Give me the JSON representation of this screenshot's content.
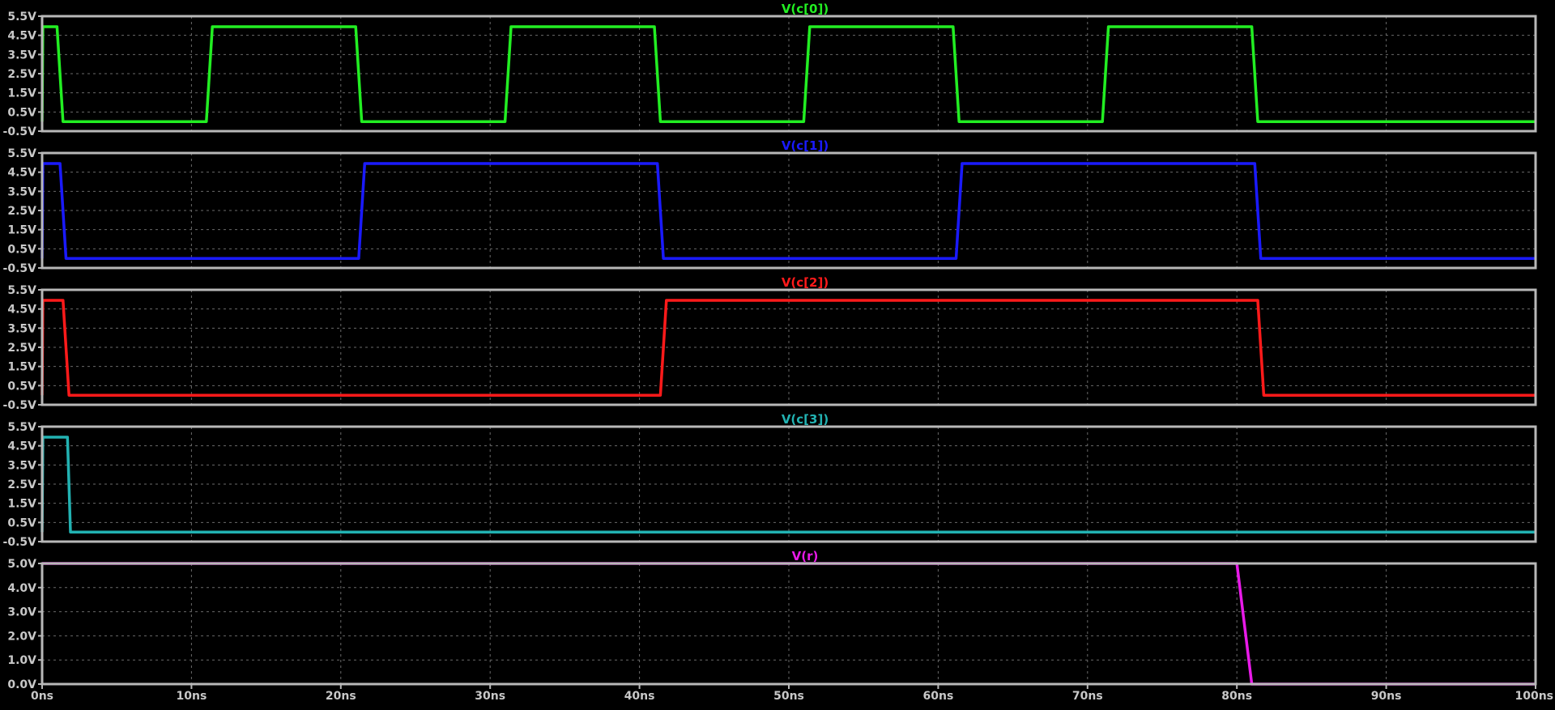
{
  "x_axis": {
    "ticks": [
      "0ns",
      "10ns",
      "20ns",
      "30ns",
      "40ns",
      "50ns",
      "60ns",
      "70ns",
      "80ns",
      "90ns",
      "100ns"
    ]
  },
  "colors": {
    "background": "#000000",
    "frame": "#b8b8b8",
    "grid": "#6a6a6a",
    "label": "#c8c8c8"
  },
  "chart_data": [
    {
      "type": "line",
      "title": "V(c[0])",
      "color": "#22ee22",
      "xlim": [
        0,
        100
      ],
      "ylim": [
        -0.5,
        5.5
      ],
      "grid": true,
      "y_ticks": [
        "5.5V",
        "4.5V",
        "3.5V",
        "2.5V",
        "1.5V",
        "0.5V",
        "-0.5V"
      ],
      "x": [
        0,
        0.05,
        1,
        1.4,
        11,
        11.4,
        21,
        21.4,
        31,
        31.4,
        41,
        41.4,
        51,
        51.4,
        61,
        61.4,
        71,
        71.4,
        81,
        81.4,
        100
      ],
      "values": [
        0,
        4.95,
        4.95,
        0,
        0,
        4.95,
        4.95,
        0,
        0,
        4.95,
        4.95,
        0,
        0,
        4.95,
        4.95,
        0,
        0,
        4.95,
        4.95,
        0,
        0
      ]
    },
    {
      "type": "line",
      "title": "V(c[1])",
      "color": "#1a1aff",
      "xlim": [
        0,
        100
      ],
      "ylim": [
        -0.5,
        5.5
      ],
      "grid": true,
      "y_ticks": [
        "5.5V",
        "4.5V",
        "3.5V",
        "2.5V",
        "1.5V",
        "0.5V",
        "-0.5V"
      ],
      "x": [
        0,
        0.05,
        1.2,
        1.6,
        21.2,
        21.6,
        41.2,
        41.6,
        61.2,
        61.6,
        81.2,
        81.6,
        100
      ],
      "values": [
        0,
        4.95,
        4.95,
        0,
        0,
        4.95,
        4.95,
        0,
        0,
        4.95,
        4.95,
        0,
        0
      ]
    },
    {
      "type": "line",
      "title": "V(c[2])",
      "color": "#ff1a1a",
      "xlim": [
        0,
        100
      ],
      "ylim": [
        -0.5,
        5.5
      ],
      "grid": true,
      "y_ticks": [
        "5.5V",
        "4.5V",
        "3.5V",
        "2.5V",
        "1.5V",
        "0.5V",
        "-0.5V"
      ],
      "x": [
        0,
        0.05,
        1.4,
        1.8,
        41.4,
        41.8,
        81.4,
        81.8,
        100
      ],
      "values": [
        0,
        4.95,
        4.95,
        0,
        0,
        4.95,
        4.95,
        0,
        0
      ]
    },
    {
      "type": "line",
      "title": "V(c[3])",
      "color": "#22b2b2",
      "xlim": [
        0,
        100
      ],
      "ylim": [
        -0.5,
        5.5
      ],
      "grid": true,
      "y_ticks": [
        "5.5V",
        "4.5V",
        "3.5V",
        "2.5V",
        "1.5V",
        "0.5V",
        "-0.5V"
      ],
      "x": [
        0,
        0.05,
        1.7,
        1.9,
        100
      ],
      "values": [
        0,
        4.95,
        4.95,
        0,
        0
      ]
    },
    {
      "type": "line",
      "title": "V(r)",
      "color": "#e81ae8",
      "xlim": [
        0,
        100
      ],
      "ylim": [
        0,
        5.0
      ],
      "grid": true,
      "y_ticks": [
        "5.0V",
        "4.0V",
        "3.0V",
        "2.0V",
        "1.0V",
        "0.0V"
      ],
      "x": [
        0,
        80,
        81,
        100
      ],
      "values": [
        5,
        5,
        0,
        0
      ]
    }
  ]
}
